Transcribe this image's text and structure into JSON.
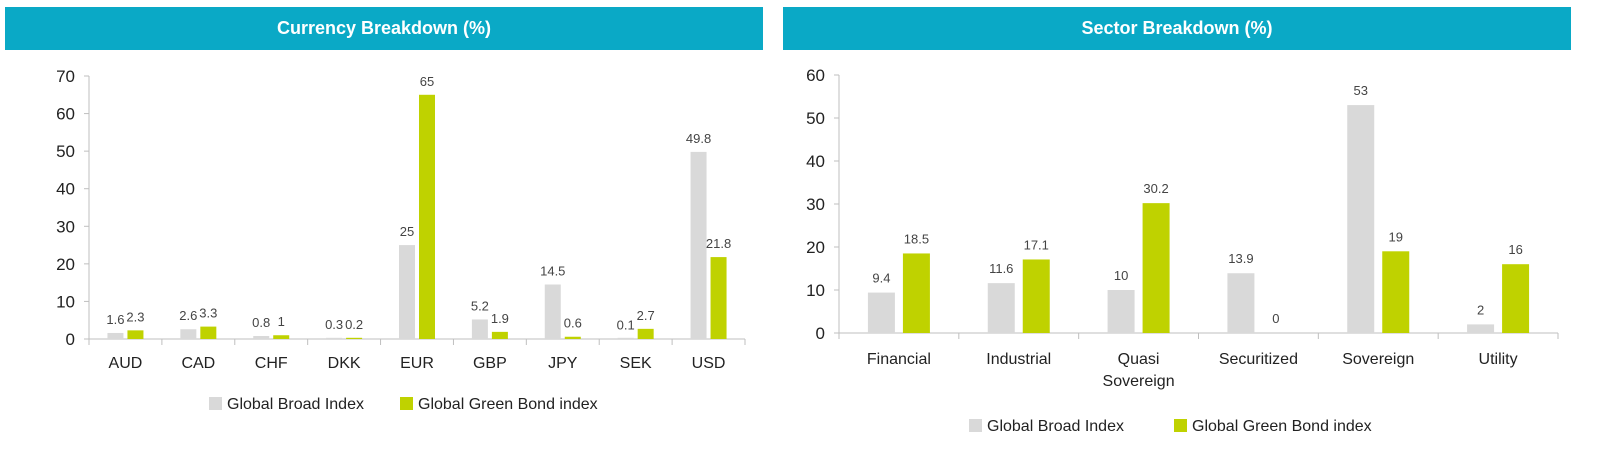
{
  "chart_data": [
    {
      "type": "bar",
      "title": "Currency Breakdown (%)",
      "categories": [
        "AUD",
        "CAD",
        "CHF",
        "DKK",
        "EUR",
        "GBP",
        "JPY",
        "SEK",
        "USD"
      ],
      "series": [
        {
          "name": "Global Broad Index",
          "values": [
            1.6,
            2.6,
            0.8,
            0.3,
            25,
            5.2,
            14.5,
            0.1,
            49.8
          ],
          "labels": [
            "1.6",
            "2.6",
            "0.8",
            "0.3",
            "25",
            "5.2",
            "14.5",
            "0.1",
            "49.8"
          ],
          "color": "#d9d9d9"
        },
        {
          "name": "Global Green Bond index",
          "values": [
            2.3,
            3.3,
            1,
            0.2,
            65,
            1.9,
            0.6,
            2.7,
            21.8
          ],
          "labels": [
            "2.3",
            "3.3",
            "1",
            "0.2",
            "65",
            "1.9",
            "0.6",
            "2.7",
            "21.8"
          ],
          "color": "#bfd200"
        }
      ],
      "ylim": [
        0,
        70
      ],
      "yticks": [
        "0",
        "10",
        "20",
        "30",
        "40",
        "50",
        "60",
        "70"
      ],
      "legend": "bottom"
    },
    {
      "type": "bar",
      "title": "Sector Breakdown (%)",
      "categories": [
        [
          "Financial"
        ],
        [
          "Industrial"
        ],
        [
          "Quasi",
          "Sovereign"
        ],
        [
          "Securitized"
        ],
        [
          "Sovereign"
        ],
        [
          "Utility"
        ]
      ],
      "series": [
        {
          "name": "Global Broad Index",
          "values": [
            9.4,
            11.6,
            10,
            13.9,
            53,
            2
          ],
          "labels": [
            "9.4",
            "11.6",
            "10",
            "13.9",
            "53",
            "2"
          ],
          "color": "#d9d9d9"
        },
        {
          "name": "Global Green Bond index",
          "values": [
            18.5,
            17.1,
            30.2,
            0,
            19,
            16
          ],
          "labels": [
            "18.5",
            "17.1",
            "30.2",
            "0",
            "19",
            "16"
          ],
          "color": "#bfd200"
        }
      ],
      "ylim": [
        0,
        60
      ],
      "yticks": [
        "0",
        "10",
        "20",
        "30",
        "40",
        "50",
        "60"
      ],
      "legend": "bottom"
    }
  ]
}
